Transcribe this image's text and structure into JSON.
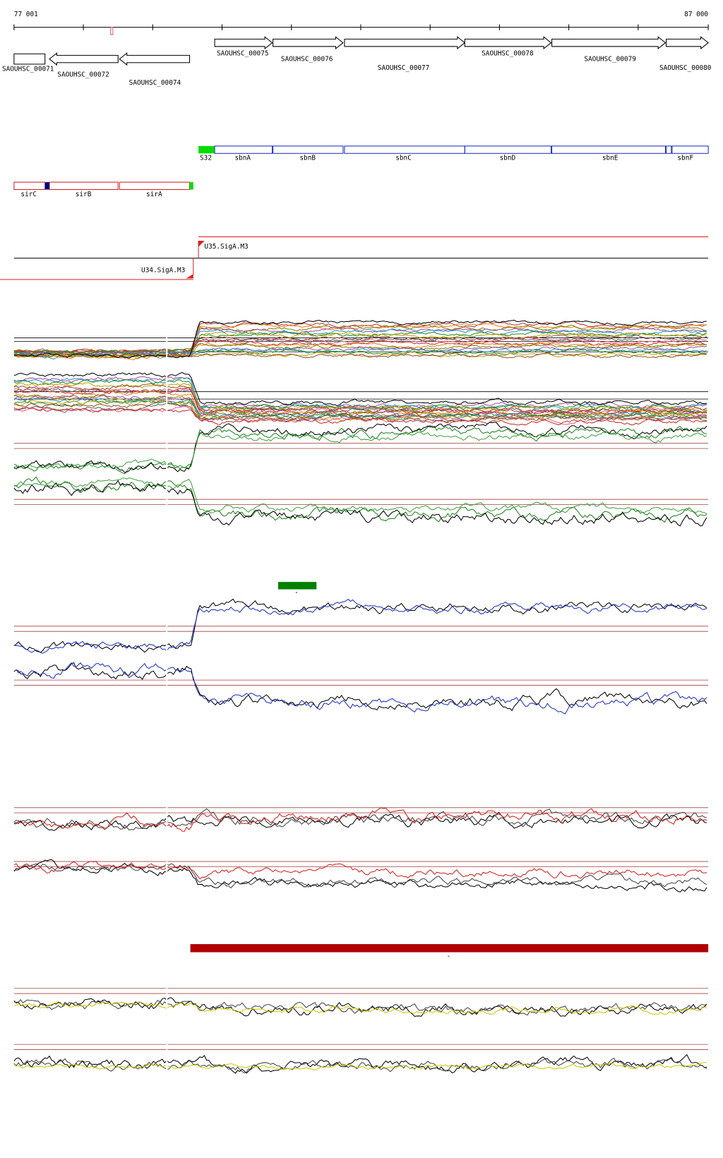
{
  "ruler": {
    "start": "77 001",
    "end": "87 000"
  },
  "genes": [
    "SAOUHSC_00071",
    "SAOUHSC_00072",
    "SAOUHSC_00074",
    "SAOUHSC_00075",
    "SAOUHSC_00076",
    "SAOUHSC_00077",
    "SAOUHSC_00078",
    "SAOUHSC_00079",
    "SAOUHSC_00080"
  ],
  "operon_labels": [
    "S32",
    "sbnA",
    "sbnB",
    "sbnC",
    "sbnD",
    "sbnE",
    "sbnF"
  ],
  "sir_labels": [
    "sirC",
    "sirB",
    "sirA"
  ],
  "promoters": [
    "U35.SigA.M3",
    "U34.SigA.M3"
  ],
  "markers": [
    "-",
    "-"
  ]
}
